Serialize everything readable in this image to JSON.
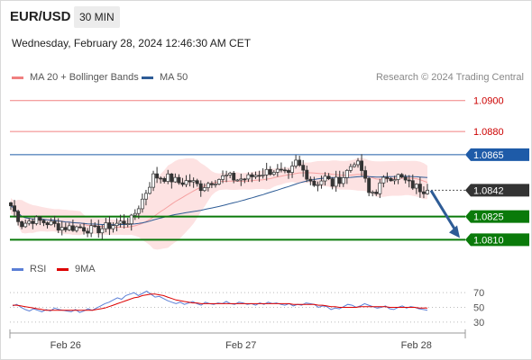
{
  "header": {
    "symbol": "EUR/USD",
    "timeframe": "30 MIN",
    "datetime": "Wednesday, February 28, 2024 12:46:30 AM CET"
  },
  "credit": "Research © 2024 Trading Central",
  "colors": {
    "resistance": "#f08080",
    "resistance_label": "#cc0000",
    "pivot": "#1e5ba8",
    "support": "#0a7a0a",
    "ma50": "#2e5c96",
    "bollinger": "#f5a0a0",
    "bull": "#ffffff",
    "bear": "#333333",
    "rsi": "#5b7fd6",
    "rsi_ma": "#dd0000",
    "arrow": "#2e5c96"
  },
  "chart_data": [
    {
      "type": "candlestick",
      "legend": [
        {
          "name": "MA 20 + Bollinger Bands",
          "color": "#f08080"
        },
        {
          "name": "MA 50",
          "color": "#2e5c96"
        }
      ],
      "legend_placement": "top-left",
      "y_range": [
        1.0805,
        1.0908
      ],
      "x_ticks": [
        {
          "label": "Feb 26",
          "index": 14
        },
        {
          "label": "Feb 27",
          "index": 62
        },
        {
          "label": "Feb 28",
          "index": 110
        }
      ],
      "levels": [
        {
          "label": "1.0900",
          "value": 1.09,
          "kind": "resistance"
        },
        {
          "label": "1.0880",
          "value": 1.088,
          "kind": "resistance"
        },
        {
          "label": "1.0865",
          "value": 1.0865,
          "kind": "pivot"
        },
        {
          "label": "1.0842",
          "value": 1.0842,
          "kind": "last"
        },
        {
          "label": "1.0825",
          "value": 1.0825,
          "kind": "support"
        },
        {
          "label": "1.0810",
          "value": 1.081,
          "kind": "support"
        }
      ],
      "last_price": 1.0842,
      "forecast_arrow": {
        "from": 1.0843,
        "to": 1.081,
        "direction": "down"
      },
      "candle_count": 115
    },
    {
      "type": "line",
      "title": "RSI",
      "legend": [
        {
          "name": "RSI",
          "color": "#5b7fd6"
        },
        {
          "name": "9MA",
          "color": "#dd0000"
        }
      ],
      "y_range": [
        20,
        80
      ],
      "y_ticks": [
        "70",
        "50",
        "30"
      ],
      "series": [
        {
          "name": "RSI",
          "values": [
            52,
            54,
            50,
            47,
            45,
            48,
            46,
            44,
            47,
            45,
            49,
            47,
            46,
            45,
            44,
            47,
            43,
            45,
            48,
            46,
            49,
            52,
            55,
            57,
            60,
            63,
            61,
            66,
            68,
            70,
            66,
            69,
            72,
            68,
            64,
            65,
            62,
            59,
            57,
            55,
            57,
            54,
            56,
            58,
            55,
            53,
            57,
            55,
            54,
            56,
            55,
            58,
            55,
            54,
            57,
            56,
            54,
            55,
            53,
            56,
            54,
            57,
            55,
            56,
            54,
            53,
            55,
            52,
            54,
            53,
            56,
            55,
            54,
            50,
            52,
            51,
            47,
            49,
            48,
            51,
            54,
            53,
            50,
            52,
            55,
            53,
            51,
            49,
            50,
            52,
            48,
            47,
            50,
            52,
            49,
            51,
            50,
            48,
            47,
            46
          ]
        },
        {
          "name": "9MA",
          "values": [
            53,
            53,
            52,
            51,
            50,
            49,
            48,
            47,
            46,
            46,
            46,
            46,
            46,
            46,
            46,
            46,
            46,
            46,
            46,
            46,
            47,
            48,
            49,
            51,
            53,
            55,
            57,
            59,
            61,
            63,
            64,
            66,
            67,
            68,
            68,
            67,
            66,
            64,
            62,
            60,
            59,
            58,
            57,
            56,
            56,
            55,
            55,
            55,
            55,
            55,
            55,
            55,
            55,
            55,
            55,
            55,
            55,
            55,
            55,
            55,
            55,
            55,
            55,
            55,
            55,
            55,
            55,
            54,
            54,
            54,
            54,
            54,
            54,
            53,
            53,
            52,
            51,
            51,
            50,
            50,
            50,
            50,
            50,
            51,
            51,
            51,
            51,
            51,
            51,
            51,
            50,
            50,
            50,
            50,
            50,
            50,
            50,
            49,
            49,
            49
          ]
        }
      ]
    }
  ]
}
